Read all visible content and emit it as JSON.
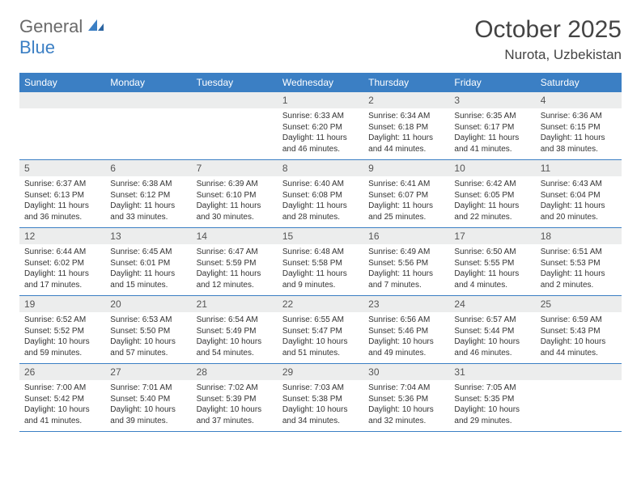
{
  "brand": {
    "part1": "General",
    "part2": "Blue"
  },
  "title": "October 2025",
  "location": "Nurota, Uzbekistan",
  "colors": {
    "header_bg": "#3b7fc4",
    "header_text": "#ffffff",
    "daynum_bg": "#eceded",
    "body_bg": "#ffffff",
    "text": "#333333",
    "logo_gray": "#6a6a6a",
    "logo_blue": "#3b7fc4",
    "rule": "#3b7fc4"
  },
  "fonts": {
    "title_pt": 30,
    "location_pt": 17,
    "weekday_pt": 12,
    "daynum_pt": 12,
    "data_pt": 10
  },
  "weekdays": [
    "Sunday",
    "Monday",
    "Tuesday",
    "Wednesday",
    "Thursday",
    "Friday",
    "Saturday"
  ],
  "weeks": [
    [
      {
        "n": "",
        "sr": "",
        "ss": "",
        "dl": "",
        "empty": true
      },
      {
        "n": "",
        "sr": "",
        "ss": "",
        "dl": "",
        "empty": true
      },
      {
        "n": "",
        "sr": "",
        "ss": "",
        "dl": "",
        "empty": true
      },
      {
        "n": "1",
        "sr": "Sunrise: 6:33 AM",
        "ss": "Sunset: 6:20 PM",
        "dl": "Daylight: 11 hours and 46 minutes."
      },
      {
        "n": "2",
        "sr": "Sunrise: 6:34 AM",
        "ss": "Sunset: 6:18 PM",
        "dl": "Daylight: 11 hours and 44 minutes."
      },
      {
        "n": "3",
        "sr": "Sunrise: 6:35 AM",
        "ss": "Sunset: 6:17 PM",
        "dl": "Daylight: 11 hours and 41 minutes."
      },
      {
        "n": "4",
        "sr": "Sunrise: 6:36 AM",
        "ss": "Sunset: 6:15 PM",
        "dl": "Daylight: 11 hours and 38 minutes."
      }
    ],
    [
      {
        "n": "5",
        "sr": "Sunrise: 6:37 AM",
        "ss": "Sunset: 6:13 PM",
        "dl": "Daylight: 11 hours and 36 minutes."
      },
      {
        "n": "6",
        "sr": "Sunrise: 6:38 AM",
        "ss": "Sunset: 6:12 PM",
        "dl": "Daylight: 11 hours and 33 minutes."
      },
      {
        "n": "7",
        "sr": "Sunrise: 6:39 AM",
        "ss": "Sunset: 6:10 PM",
        "dl": "Daylight: 11 hours and 30 minutes."
      },
      {
        "n": "8",
        "sr": "Sunrise: 6:40 AM",
        "ss": "Sunset: 6:08 PM",
        "dl": "Daylight: 11 hours and 28 minutes."
      },
      {
        "n": "9",
        "sr": "Sunrise: 6:41 AM",
        "ss": "Sunset: 6:07 PM",
        "dl": "Daylight: 11 hours and 25 minutes."
      },
      {
        "n": "10",
        "sr": "Sunrise: 6:42 AM",
        "ss": "Sunset: 6:05 PM",
        "dl": "Daylight: 11 hours and 22 minutes."
      },
      {
        "n": "11",
        "sr": "Sunrise: 6:43 AM",
        "ss": "Sunset: 6:04 PM",
        "dl": "Daylight: 11 hours and 20 minutes."
      }
    ],
    [
      {
        "n": "12",
        "sr": "Sunrise: 6:44 AM",
        "ss": "Sunset: 6:02 PM",
        "dl": "Daylight: 11 hours and 17 minutes."
      },
      {
        "n": "13",
        "sr": "Sunrise: 6:45 AM",
        "ss": "Sunset: 6:01 PM",
        "dl": "Daylight: 11 hours and 15 minutes."
      },
      {
        "n": "14",
        "sr": "Sunrise: 6:47 AM",
        "ss": "Sunset: 5:59 PM",
        "dl": "Daylight: 11 hours and 12 minutes."
      },
      {
        "n": "15",
        "sr": "Sunrise: 6:48 AM",
        "ss": "Sunset: 5:58 PM",
        "dl": "Daylight: 11 hours and 9 minutes."
      },
      {
        "n": "16",
        "sr": "Sunrise: 6:49 AM",
        "ss": "Sunset: 5:56 PM",
        "dl": "Daylight: 11 hours and 7 minutes."
      },
      {
        "n": "17",
        "sr": "Sunrise: 6:50 AM",
        "ss": "Sunset: 5:55 PM",
        "dl": "Daylight: 11 hours and 4 minutes."
      },
      {
        "n": "18",
        "sr": "Sunrise: 6:51 AM",
        "ss": "Sunset: 5:53 PM",
        "dl": "Daylight: 11 hours and 2 minutes."
      }
    ],
    [
      {
        "n": "19",
        "sr": "Sunrise: 6:52 AM",
        "ss": "Sunset: 5:52 PM",
        "dl": "Daylight: 10 hours and 59 minutes."
      },
      {
        "n": "20",
        "sr": "Sunrise: 6:53 AM",
        "ss": "Sunset: 5:50 PM",
        "dl": "Daylight: 10 hours and 57 minutes."
      },
      {
        "n": "21",
        "sr": "Sunrise: 6:54 AM",
        "ss": "Sunset: 5:49 PM",
        "dl": "Daylight: 10 hours and 54 minutes."
      },
      {
        "n": "22",
        "sr": "Sunrise: 6:55 AM",
        "ss": "Sunset: 5:47 PM",
        "dl": "Daylight: 10 hours and 51 minutes."
      },
      {
        "n": "23",
        "sr": "Sunrise: 6:56 AM",
        "ss": "Sunset: 5:46 PM",
        "dl": "Daylight: 10 hours and 49 minutes."
      },
      {
        "n": "24",
        "sr": "Sunrise: 6:57 AM",
        "ss": "Sunset: 5:44 PM",
        "dl": "Daylight: 10 hours and 46 minutes."
      },
      {
        "n": "25",
        "sr": "Sunrise: 6:59 AM",
        "ss": "Sunset: 5:43 PM",
        "dl": "Daylight: 10 hours and 44 minutes."
      }
    ],
    [
      {
        "n": "26",
        "sr": "Sunrise: 7:00 AM",
        "ss": "Sunset: 5:42 PM",
        "dl": "Daylight: 10 hours and 41 minutes."
      },
      {
        "n": "27",
        "sr": "Sunrise: 7:01 AM",
        "ss": "Sunset: 5:40 PM",
        "dl": "Daylight: 10 hours and 39 minutes."
      },
      {
        "n": "28",
        "sr": "Sunrise: 7:02 AM",
        "ss": "Sunset: 5:39 PM",
        "dl": "Daylight: 10 hours and 37 minutes."
      },
      {
        "n": "29",
        "sr": "Sunrise: 7:03 AM",
        "ss": "Sunset: 5:38 PM",
        "dl": "Daylight: 10 hours and 34 minutes."
      },
      {
        "n": "30",
        "sr": "Sunrise: 7:04 AM",
        "ss": "Sunset: 5:36 PM",
        "dl": "Daylight: 10 hours and 32 minutes."
      },
      {
        "n": "31",
        "sr": "Sunrise: 7:05 AM",
        "ss": "Sunset: 5:35 PM",
        "dl": "Daylight: 10 hours and 29 minutes."
      },
      {
        "n": "",
        "sr": "",
        "ss": "",
        "dl": "",
        "empty": true
      }
    ]
  ]
}
